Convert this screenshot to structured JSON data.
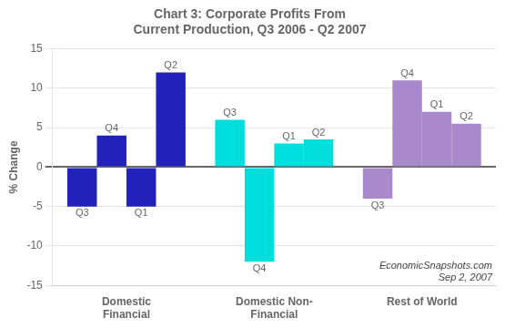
{
  "chart_data": {
    "type": "bar",
    "title": "Chart 3: Corporate Profits From\nCurrent Production, Q3 2006 - Q2 2007",
    "ylabel": "% Change",
    "categories": [
      "Domestic\nFinancial",
      "Domestic Non-\nFinancial",
      "Rest of World"
    ],
    "series": [
      {
        "name": "Q3",
        "values": [
          -5.0,
          6.0,
          -4.0
        ],
        "colors": [
          "#2222BB",
          "#00DDDD",
          "#AA88CC"
        ]
      },
      {
        "name": "Q4",
        "values": [
          4.0,
          -12.0,
          11.0
        ],
        "colors": [
          "#2222BB",
          "#00DDDD",
          "#AA88CC"
        ]
      },
      {
        "name": "Q1",
        "values": [
          -5.0,
          3.0,
          7.0
        ],
        "colors": [
          "#2222BB",
          "#00DDDD",
          "#AA88CC"
        ]
      },
      {
        "name": "Q2",
        "values": [
          12.0,
          3.5,
          5.5
        ],
        "colors": [
          "#2222BB",
          "#00DDDD",
          "#AA88CC"
        ]
      }
    ],
    "ylim": [
      -15,
      15
    ],
    "yticks": [
      -15,
      -10,
      -5,
      0,
      5,
      10,
      15
    ],
    "grid": true,
    "annotations": [
      "EconomicSnapshots.com",
      "Sep 2, 2007"
    ]
  }
}
